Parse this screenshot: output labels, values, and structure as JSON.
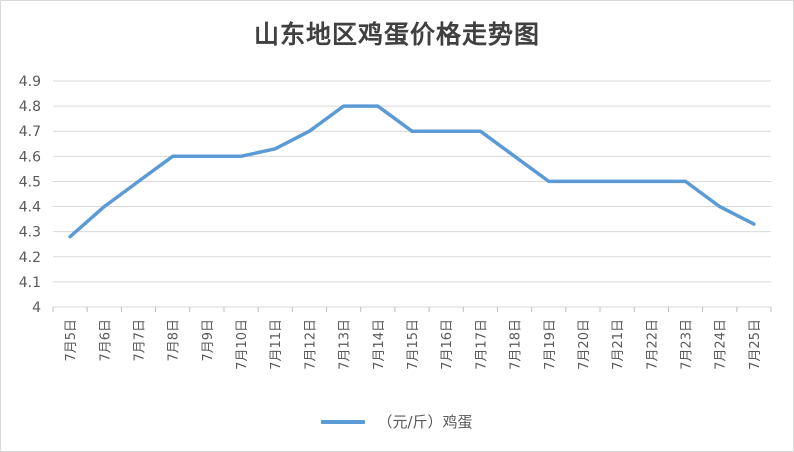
{
  "chart_data": {
    "type": "line",
    "title": "山东地区鸡蛋价格走势图",
    "categories": [
      "7月5日",
      "7月6日",
      "7月7日",
      "7月8日",
      "7月9日",
      "7月10日",
      "7月11日",
      "7月12日",
      "7月13日",
      "7月14日",
      "7月15日",
      "7月16日",
      "7月17日",
      "7月18日",
      "7月19日",
      "7月20日",
      "7月21日",
      "7月22日",
      "7月23日",
      "7月24日",
      "7月25日"
    ],
    "series": [
      {
        "name": "（元/斤）鸡蛋",
        "values": [
          4.28,
          4.4,
          4.5,
          4.6,
          4.6,
          4.6,
          4.63,
          4.7,
          4.8,
          4.8,
          4.7,
          4.7,
          4.7,
          4.6,
          4.5,
          4.5,
          4.5,
          4.5,
          4.5,
          4.4,
          4.33
        ]
      }
    ],
    "yticks": [
      "4",
      "4.1",
      "4.2",
      "4.3",
      "4.4",
      "4.5",
      "4.6",
      "4.7",
      "4.8",
      "4.9"
    ],
    "ylim": [
      4,
      4.9
    ],
    "grid": true,
    "legend_position": "bottom",
    "line_color": "#5b9bd5"
  }
}
